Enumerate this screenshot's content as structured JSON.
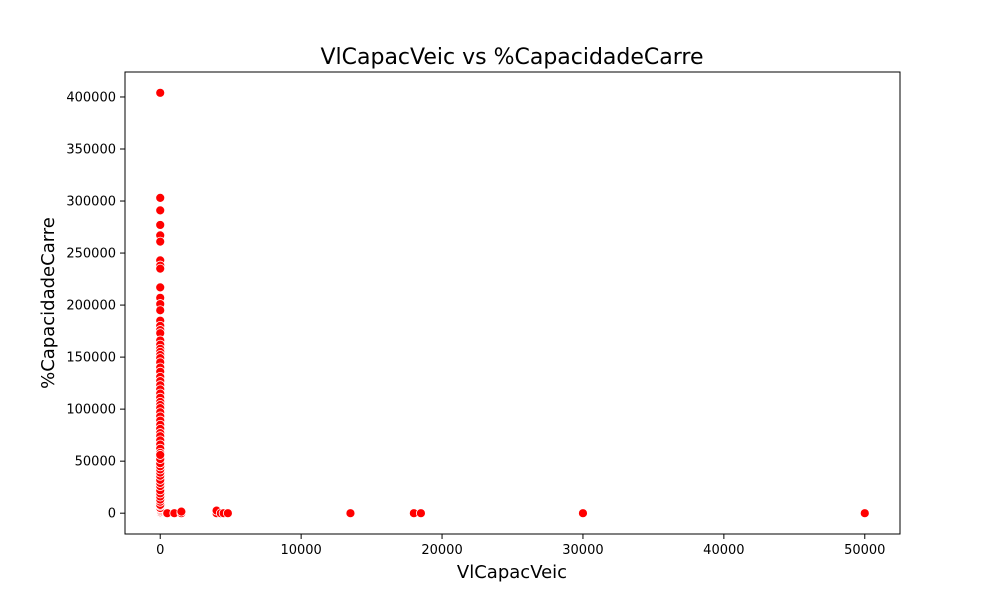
{
  "chart_data": {
    "type": "scatter",
    "title": "VlCapacVeic vs %CapacidadeCarre",
    "xlabel": "VlCapacVeic",
    "ylabel": "%CapacidadeCarre",
    "xlim": [
      -2500,
      52500
    ],
    "ylim": [
      -20000,
      424000
    ],
    "xticks": [
      0,
      10000,
      20000,
      30000,
      40000,
      50000
    ],
    "yticks": [
      0,
      50000,
      100000,
      150000,
      200000,
      250000,
      300000,
      350000,
      400000
    ],
    "grid": false,
    "legend": "none",
    "marker_color": "#ff0000",
    "marker_edge": "#ffffff",
    "series": [
      {
        "x": [
          0,
          0,
          0,
          0,
          0,
          0,
          0,
          0,
          0,
          0,
          0,
          0,
          0,
          0,
          0,
          0,
          0,
          0,
          0,
          0,
          0,
          0,
          0,
          0,
          0,
          0,
          0,
          0,
          0,
          0,
          0,
          0,
          0,
          0,
          0,
          0,
          0,
          0,
          0,
          0,
          0,
          0,
          0,
          0,
          0,
          0,
          0,
          0,
          0,
          0,
          0,
          0,
          0,
          0,
          0,
          0,
          0,
          0,
          0,
          0,
          0,
          0,
          0,
          0,
          0,
          0,
          0,
          0,
          0,
          0,
          0,
          0,
          0,
          0,
          0,
          0,
          0,
          0,
          0,
          0,
          0,
          0,
          0,
          0,
          0,
          0,
          0,
          0,
          0,
          500,
          1000,
          1500,
          1500,
          4000,
          4000,
          4300,
          4500,
          4800,
          13500,
          18000,
          18500,
          30000,
          50000
        ],
        "y": [
          404000,
          303000,
          291000,
          277000,
          267000,
          261000,
          243000,
          238000,
          235000,
          217000,
          207000,
          201000,
          195000,
          185000,
          180000,
          176000,
          173000,
          166000,
          162000,
          158000,
          155000,
          152000,
          149000,
          145000,
          140000,
          136000,
          131000,
          127000,
          123000,
          119000,
          115000,
          111000,
          107000,
          104000,
          101000,
          97000,
          93000,
          89000,
          85000,
          81000,
          77000,
          74000,
          70000,
          66000,
          62000,
          58000,
          54000,
          50000,
          47000,
          44000,
          41000,
          38000,
          34000,
          31000,
          28000,
          24000,
          21000,
          18000,
          15000,
          12000,
          9000,
          6000,
          3000,
          1500,
          0,
          500,
          1000,
          2000,
          2500,
          3500,
          4500,
          5000,
          7000,
          8000,
          11000,
          13000,
          16000,
          19000,
          22000,
          26000,
          29000,
          32000,
          36000,
          39000,
          42000,
          45000,
          48000,
          52000,
          56000,
          0,
          0,
          0,
          1500,
          0,
          2500,
          0,
          0,
          0,
          0,
          0,
          0,
          0,
          0
        ]
      }
    ]
  }
}
